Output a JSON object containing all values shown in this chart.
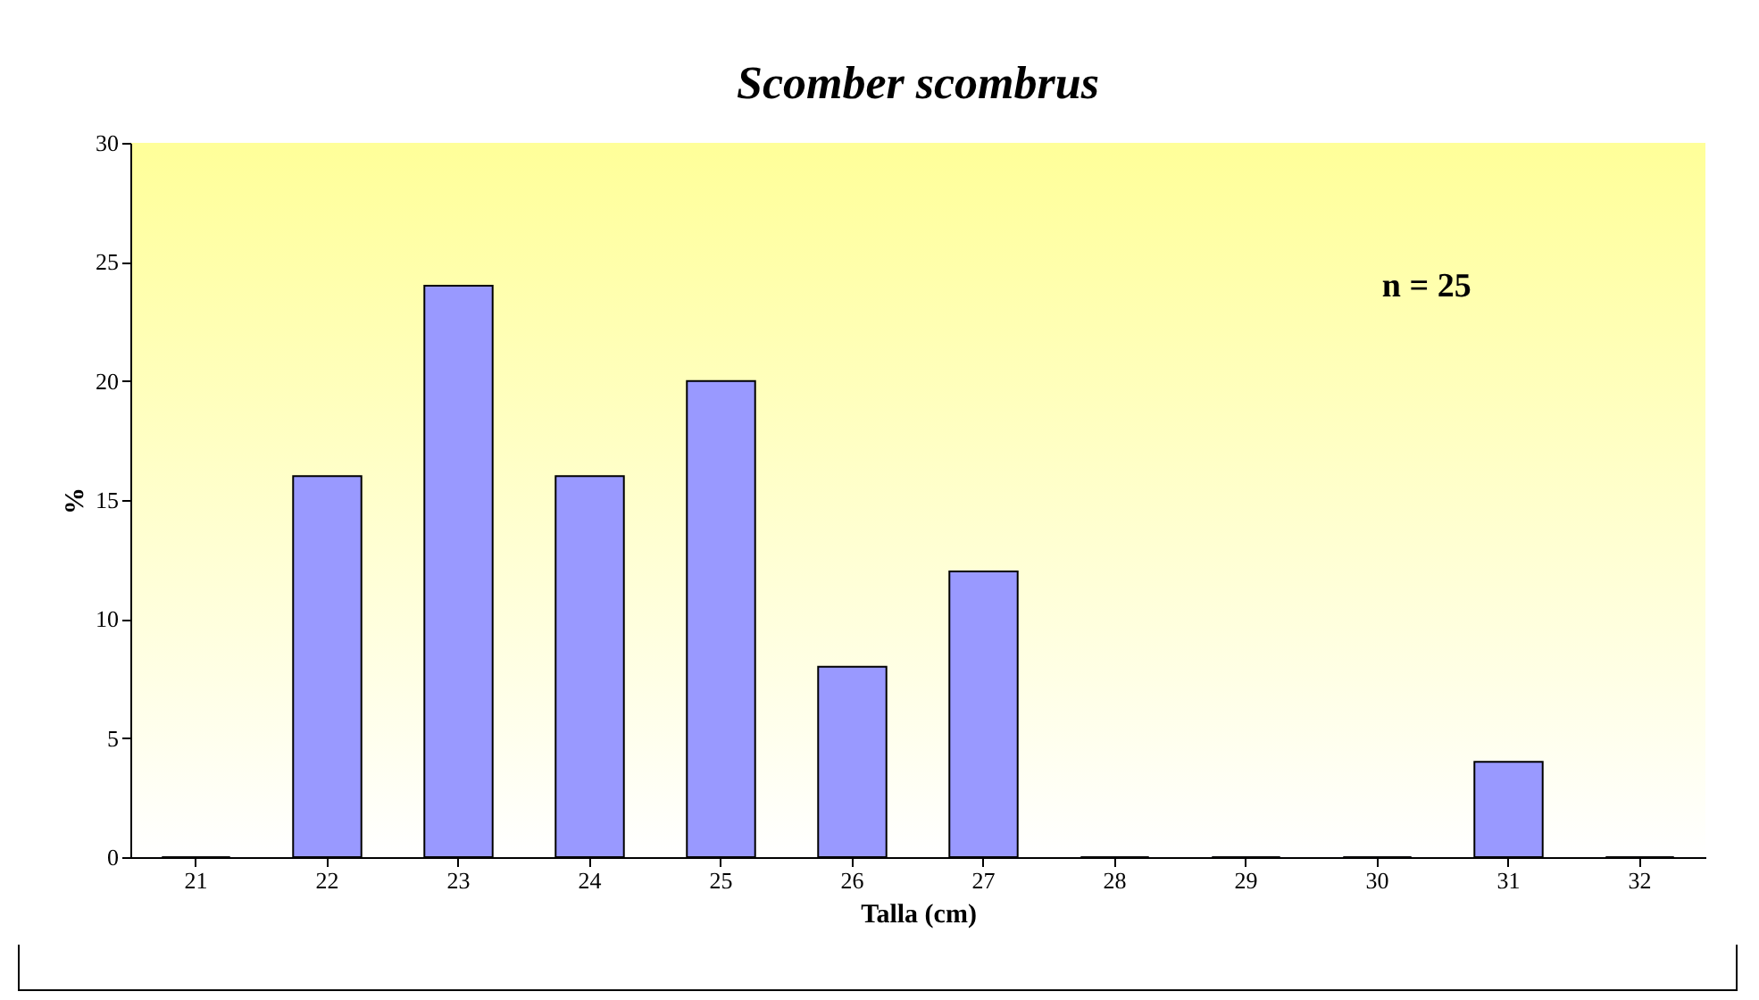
{
  "chart_data": {
    "type": "bar",
    "title": "Scomber scombrus",
    "xlabel": "Talla (cm)",
    "ylabel": "%",
    "categories": [
      "21",
      "22",
      "23",
      "24",
      "25",
      "26",
      "27",
      "28",
      "29",
      "30",
      "31",
      "32"
    ],
    "values": [
      0,
      16,
      24,
      16,
      20,
      8,
      12,
      0,
      0,
      0,
      4,
      0
    ],
    "color": "#9999ff",
    "ylim": [
      0,
      30
    ],
    "yticks": [
      0,
      5,
      10,
      15,
      20,
      25,
      30
    ],
    "grid": false,
    "annotations": [
      "n = 25"
    ]
  }
}
